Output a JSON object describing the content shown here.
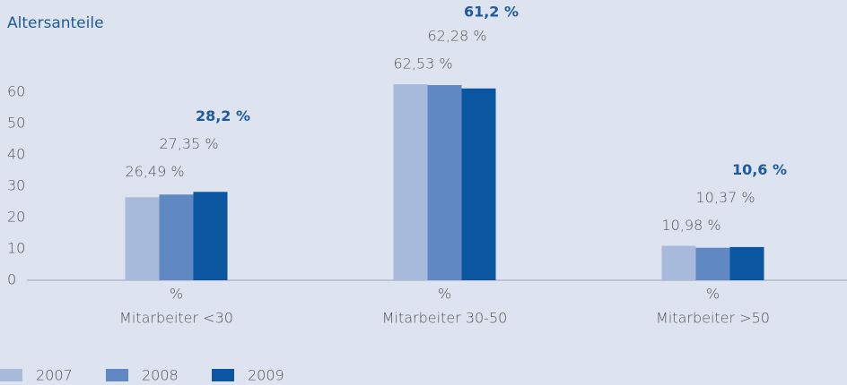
{
  "chart_data": {
    "type": "bar",
    "title": "Altersanteile",
    "categories": [
      "Mitarbeiter <30",
      "Mitarbeiter 30-50",
      "Mitarbeiter >50"
    ],
    "category_unit": "%",
    "series": [
      {
        "name": "2007",
        "color": "#a8badb",
        "values": [
          26.49,
          62.53,
          10.98
        ],
        "value_labels": [
          "26,49 %",
          "62,53 %",
          "10,98 %"
        ]
      },
      {
        "name": "2008",
        "color": "#6088c2",
        "values": [
          27.35,
          62.28,
          10.37
        ],
        "value_labels": [
          "27,35 %",
          "62,28 %",
          "10,37 %"
        ]
      },
      {
        "name": "2009",
        "color": "#0b56a0",
        "values": [
          28.2,
          61.2,
          10.6
        ],
        "value_labels": [
          "28,2 %",
          "61,2 %",
          "10,6 %"
        ]
      }
    ],
    "ylim": [
      0,
      60
    ],
    "yticks": [
      0,
      10,
      20,
      30,
      40,
      50,
      60
    ],
    "highlight_series": 2
  }
}
